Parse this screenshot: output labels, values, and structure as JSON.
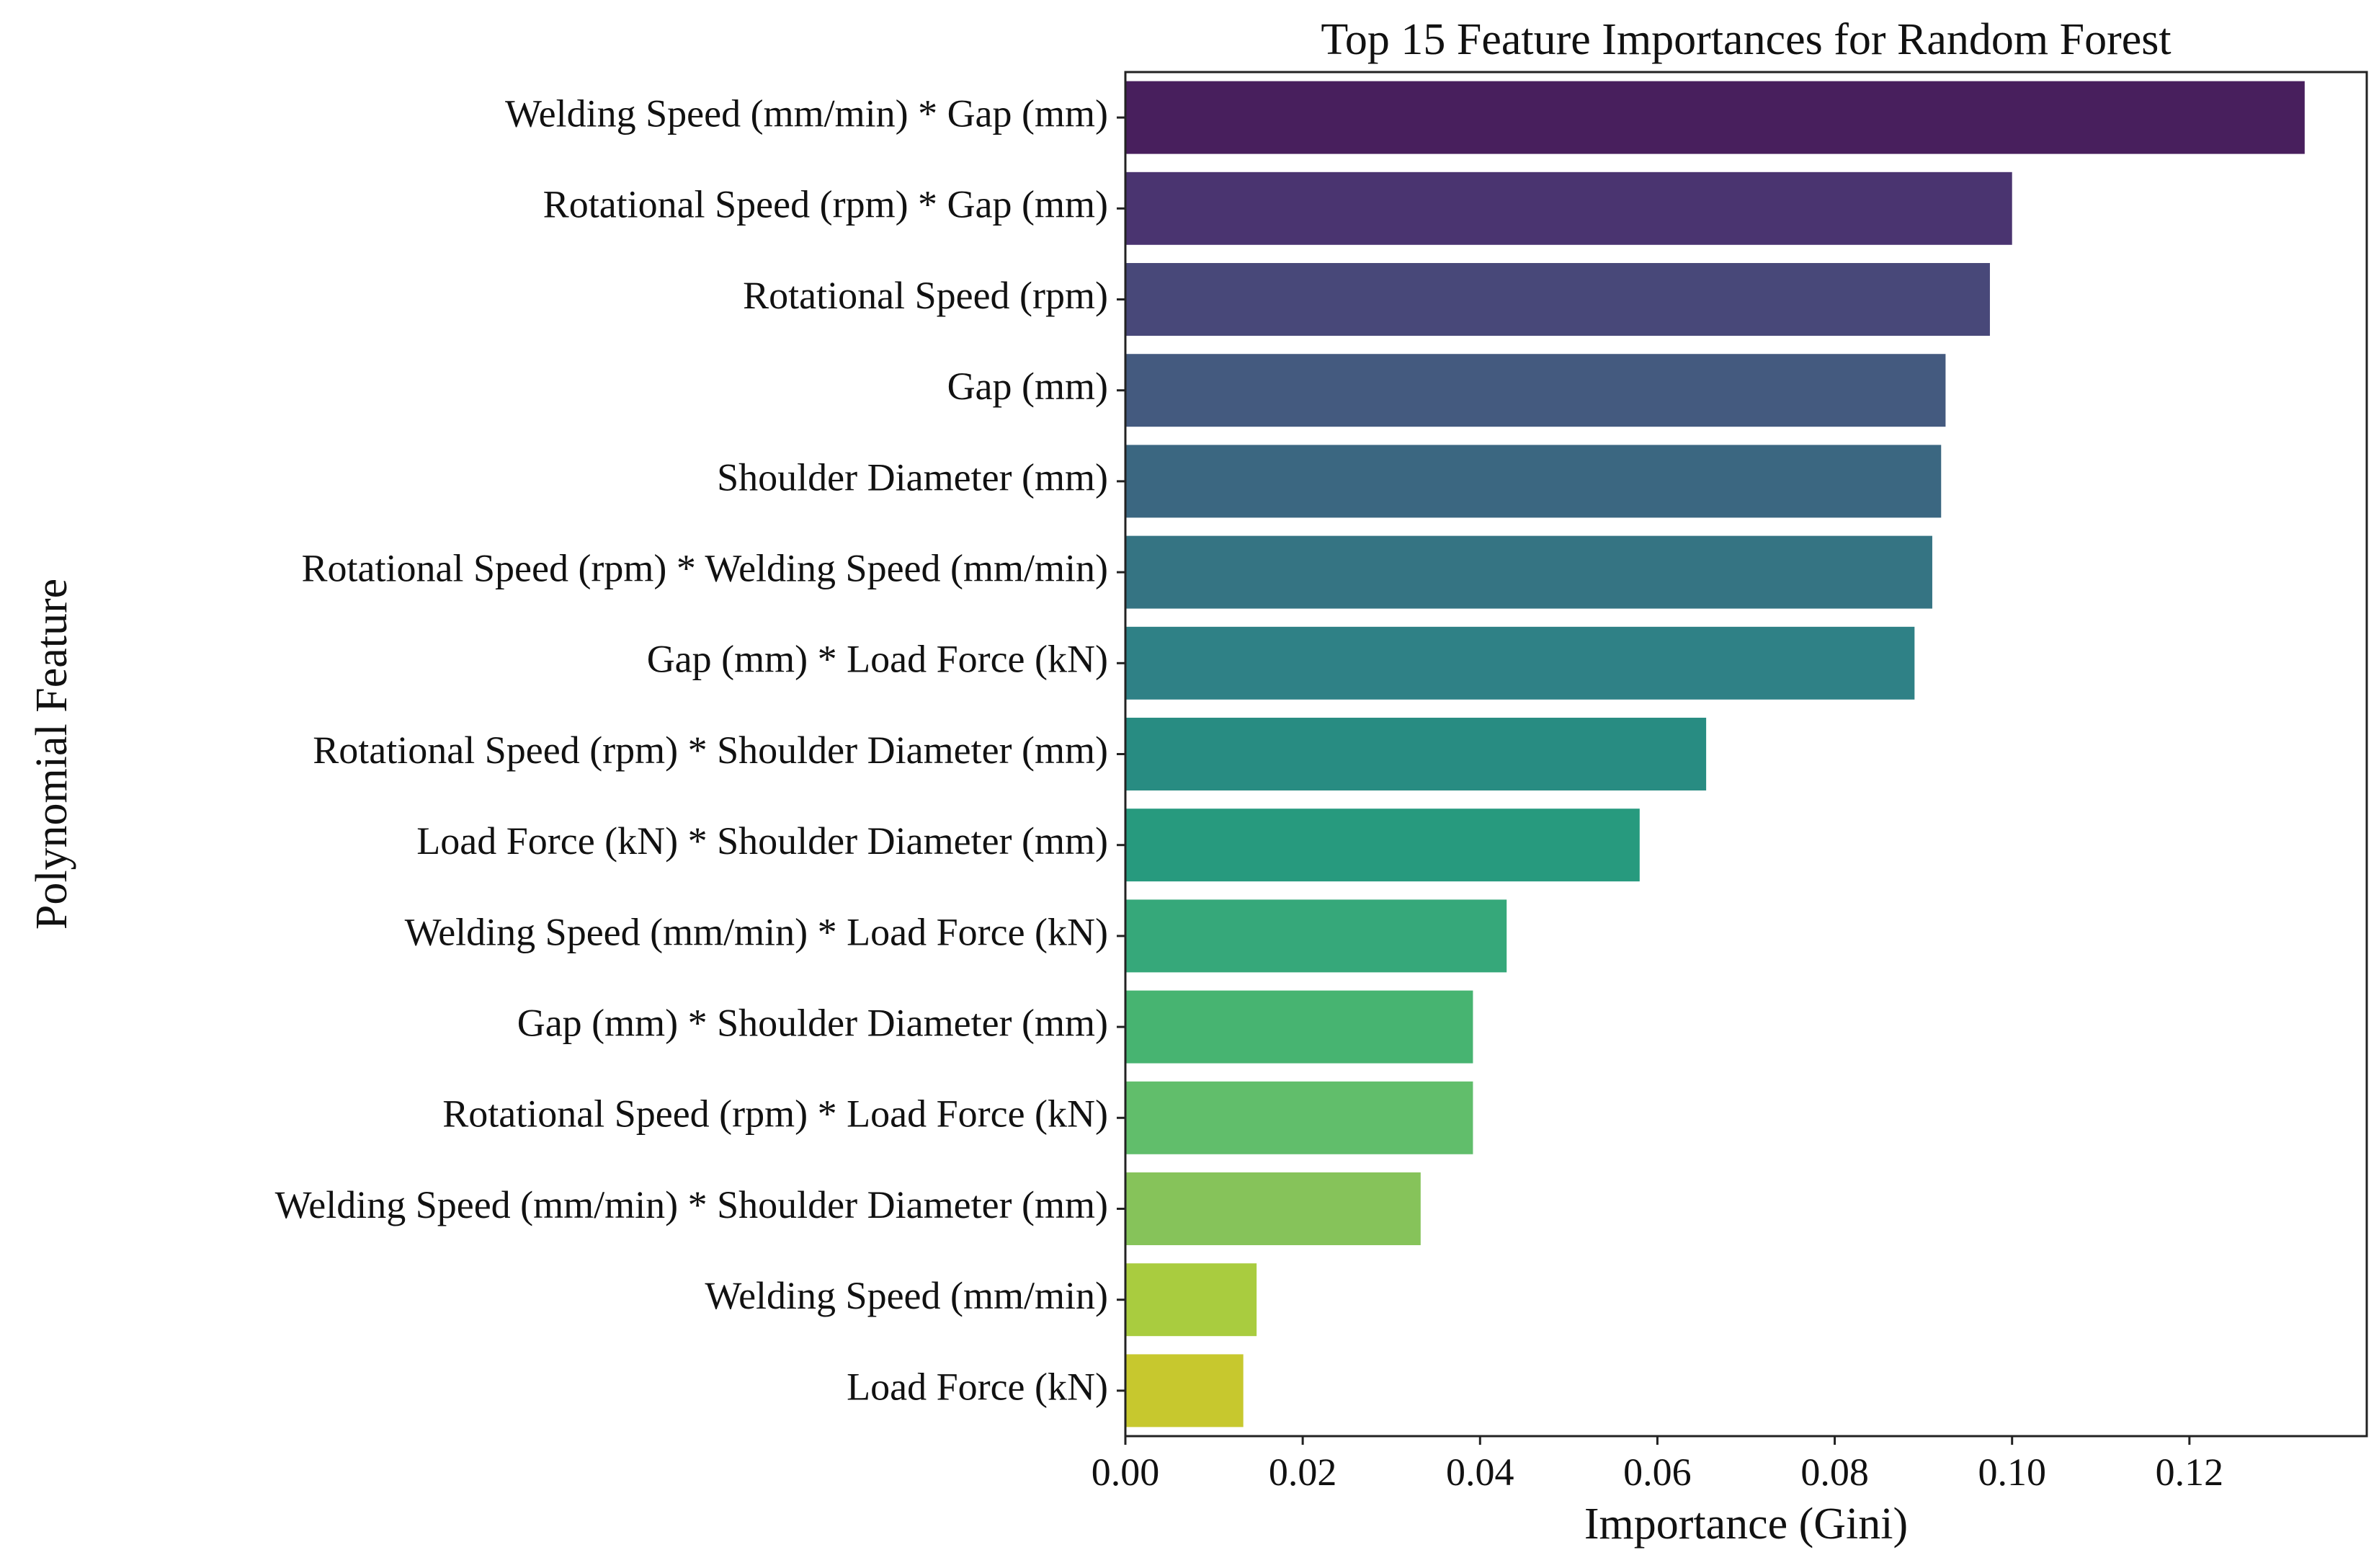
{
  "chart_data": {
    "type": "bar",
    "orientation": "horizontal",
    "title": "Top 15 Feature Importances for Random Forest",
    "xlabel": "Importance (Gini)",
    "ylabel": "Polynomial Feature",
    "xlim": [
      0,
      0.14
    ],
    "xticks": [
      0.0,
      0.02,
      0.04,
      0.06,
      0.08,
      0.1,
      0.12
    ],
    "xtick_labels": [
      "0.00",
      "0.02",
      "0.04",
      "0.06",
      "0.08",
      "0.10",
      "0.12"
    ],
    "grid": false,
    "legend": "none",
    "colormap": "viridis",
    "categories": [
      "Welding Speed (mm/min) * Gap (mm)",
      "Rotational Speed (rpm) * Gap (mm)",
      "Rotational Speed (rpm)",
      "Gap (mm)",
      "Shoulder Diameter (mm)",
      "Rotational Speed (rpm) * Welding Speed (mm/min)",
      "Gap (mm) * Load Force (kN)",
      "Rotational Speed (rpm) * Shoulder Diameter (mm)",
      "Load Force (kN) * Shoulder Diameter (mm)",
      "Welding Speed (mm/min) * Load Force (kN)",
      "Gap (mm) * Shoulder Diameter (mm)",
      "Rotational Speed (rpm) * Load Force (kN)",
      "Welding Speed (mm/min) * Shoulder Diameter (mm)",
      "Welding Speed (mm/min)",
      "Load Force (kN)"
    ],
    "values": [
      0.133,
      0.1,
      0.0975,
      0.0925,
      0.092,
      0.091,
      0.089,
      0.0655,
      0.058,
      0.043,
      0.0392,
      0.0392,
      0.0333,
      0.0148,
      0.0133
    ],
    "colors": [
      "#481f5d",
      "#4a3470",
      "#484879",
      "#445a7f",
      "#3b6781",
      "#357483",
      "#2f8186",
      "#288c82",
      "#279a7e",
      "#36a87a",
      "#47b471",
      "#61be6b",
      "#86c35a",
      "#a9cc3f",
      "#c7c82e"
    ]
  }
}
